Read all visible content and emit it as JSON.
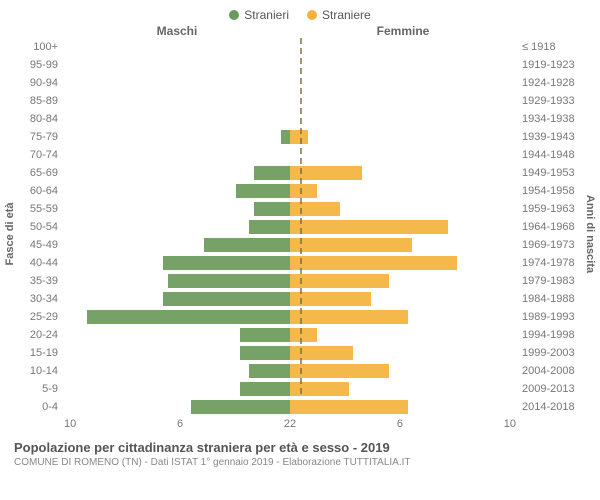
{
  "legend": {
    "male": "Stranieri",
    "female": "Straniere"
  },
  "headers": {
    "male": "Maschi",
    "female": "Femmine"
  },
  "ytitle_left": "Fasce di età",
  "ytitle_right": "Anni di nascita",
  "colors": {
    "male": "#6a9a5b",
    "female": "#f3b23c",
    "centerline": "#7a6a3a",
    "text": "#666666"
  },
  "axis": {
    "max": 10,
    "ticks_left": [
      "10",
      "6",
      "2"
    ],
    "ticks_right": [
      "2",
      "6",
      "10"
    ]
  },
  "rows": [
    {
      "age": "100+",
      "birth": "≤ 1918",
      "m": 0,
      "f": 0
    },
    {
      "age": "95-99",
      "birth": "1919-1923",
      "m": 0,
      "f": 0
    },
    {
      "age": "90-94",
      "birth": "1924-1928",
      "m": 0,
      "f": 0
    },
    {
      "age": "85-89",
      "birth": "1929-1933",
      "m": 0,
      "f": 0
    },
    {
      "age": "80-84",
      "birth": "1934-1938",
      "m": 0,
      "f": 0
    },
    {
      "age": "75-79",
      "birth": "1939-1943",
      "m": 0.4,
      "f": 0.8
    },
    {
      "age": "70-74",
      "birth": "1944-1948",
      "m": 0,
      "f": 0
    },
    {
      "age": "65-69",
      "birth": "1949-1953",
      "m": 1.6,
      "f": 3.2
    },
    {
      "age": "60-64",
      "birth": "1954-1958",
      "m": 2.4,
      "f": 1.2
    },
    {
      "age": "55-59",
      "birth": "1959-1963",
      "m": 1.6,
      "f": 2.2
    },
    {
      "age": "50-54",
      "birth": "1964-1968",
      "m": 1.8,
      "f": 7.0
    },
    {
      "age": "45-49",
      "birth": "1969-1973",
      "m": 3.8,
      "f": 5.4
    },
    {
      "age": "40-44",
      "birth": "1974-1978",
      "m": 5.6,
      "f": 7.4
    },
    {
      "age": "35-39",
      "birth": "1979-1983",
      "m": 5.4,
      "f": 4.4
    },
    {
      "age": "30-34",
      "birth": "1984-1988",
      "m": 5.6,
      "f": 3.6
    },
    {
      "age": "25-29",
      "birth": "1989-1993",
      "m": 9.0,
      "f": 5.2
    },
    {
      "age": "20-24",
      "birth": "1994-1998",
      "m": 2.2,
      "f": 1.2
    },
    {
      "age": "15-19",
      "birth": "1999-2003",
      "m": 2.2,
      "f": 2.8
    },
    {
      "age": "10-14",
      "birth": "2004-2008",
      "m": 1.8,
      "f": 4.4
    },
    {
      "age": "5-9",
      "birth": "2009-2013",
      "m": 2.2,
      "f": 2.6
    },
    {
      "age": "0-4",
      "birth": "2014-2018",
      "m": 4.4,
      "f": 5.2
    }
  ],
  "title": "Popolazione per cittadinanza straniera per età e sesso - 2019",
  "subtitle": "COMUNE DI ROMENO (TN) - Dati ISTAT 1° gennaio 2019 - Elaborazione TUTTITALIA.IT"
}
